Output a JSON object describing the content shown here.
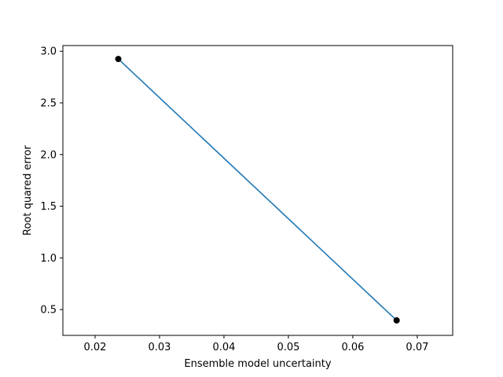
{
  "chart_data": {
    "type": "line",
    "xlabel": "Ensemble model uncertainty",
    "ylabel": "Root quared error",
    "xlim": [
      0.015,
      0.0755
    ],
    "ylim": [
      0.25,
      3.055
    ],
    "xticks": [
      0.02,
      0.03,
      0.04,
      0.05,
      0.06,
      0.07
    ],
    "xtick_labels": [
      "0.02",
      "0.03",
      "0.04",
      "0.05",
      "0.06",
      "0.07"
    ],
    "yticks": [
      0.5,
      1.0,
      1.5,
      2.0,
      2.5,
      3.0
    ],
    "ytick_labels": [
      "0.5",
      "1.0",
      "1.5",
      "2.0",
      "2.5",
      "3.0"
    ],
    "grid": false,
    "series": [
      {
        "x": [
          0.0236,
          0.0668
        ],
        "y": [
          2.925,
          0.395
        ],
        "line_color": "#1f77b4",
        "marker_color": "#000000"
      }
    ]
  }
}
